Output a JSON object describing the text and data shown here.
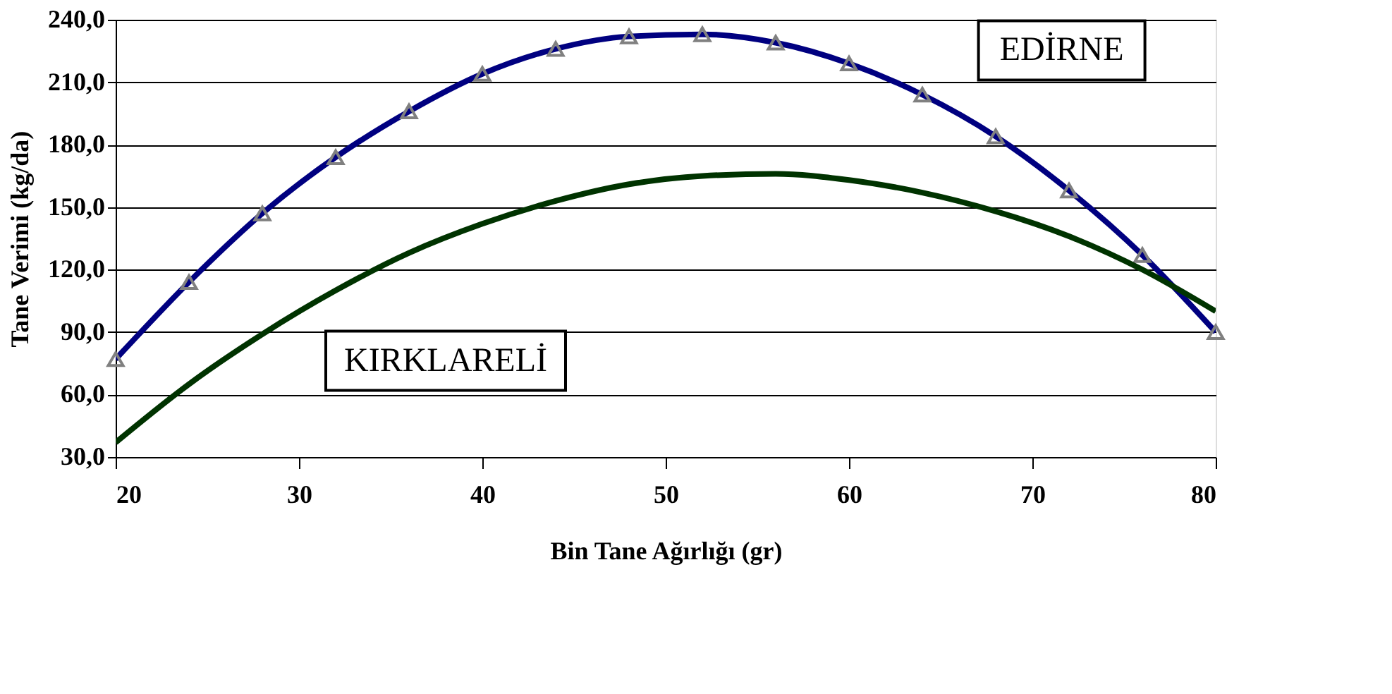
{
  "chart_data": {
    "type": "line",
    "xlabel": "Bin Tane Ağırlığı (gr)",
    "ylabel": "Tane Verimi (kg/da)",
    "x": [
      20,
      24,
      28,
      32,
      36,
      40,
      44,
      48,
      52,
      56,
      60,
      64,
      68,
      72,
      76,
      80
    ],
    "series": [
      {
        "name": "EDİRNE",
        "color": "#000080",
        "marker": "triangle",
        "values": [
          77,
          114,
          147,
          174,
          196,
          214,
          226,
          232,
          233,
          229,
          219,
          204,
          184,
          158,
          127,
          90
        ]
      },
      {
        "name": "KIRKLARELİ",
        "color": "#003300",
        "marker": "none",
        "values": [
          37,
          65,
          89,
          110,
          128,
          142,
          153,
          161,
          165,
          166,
          163,
          157,
          148,
          136,
          120,
          100
        ]
      }
    ],
    "xlim": [
      20,
      80
    ],
    "xticks": [
      20,
      30,
      40,
      50,
      60,
      70,
      80
    ],
    "ylim": [
      30,
      240
    ],
    "yticks": [
      {
        "value": 30,
        "label": "30,0"
      },
      {
        "value": 60,
        "label": "60,0"
      },
      {
        "value": 90,
        "label": "90,0"
      },
      {
        "value": 120,
        "label": "120,0"
      },
      {
        "value": 150,
        "label": "150,0"
      },
      {
        "value": 180,
        "label": "180,0"
      },
      {
        "value": 210,
        "label": "210,0"
      },
      {
        "value": 240,
        "label": "240,0"
      }
    ],
    "grid": "y",
    "legend": false
  }
}
